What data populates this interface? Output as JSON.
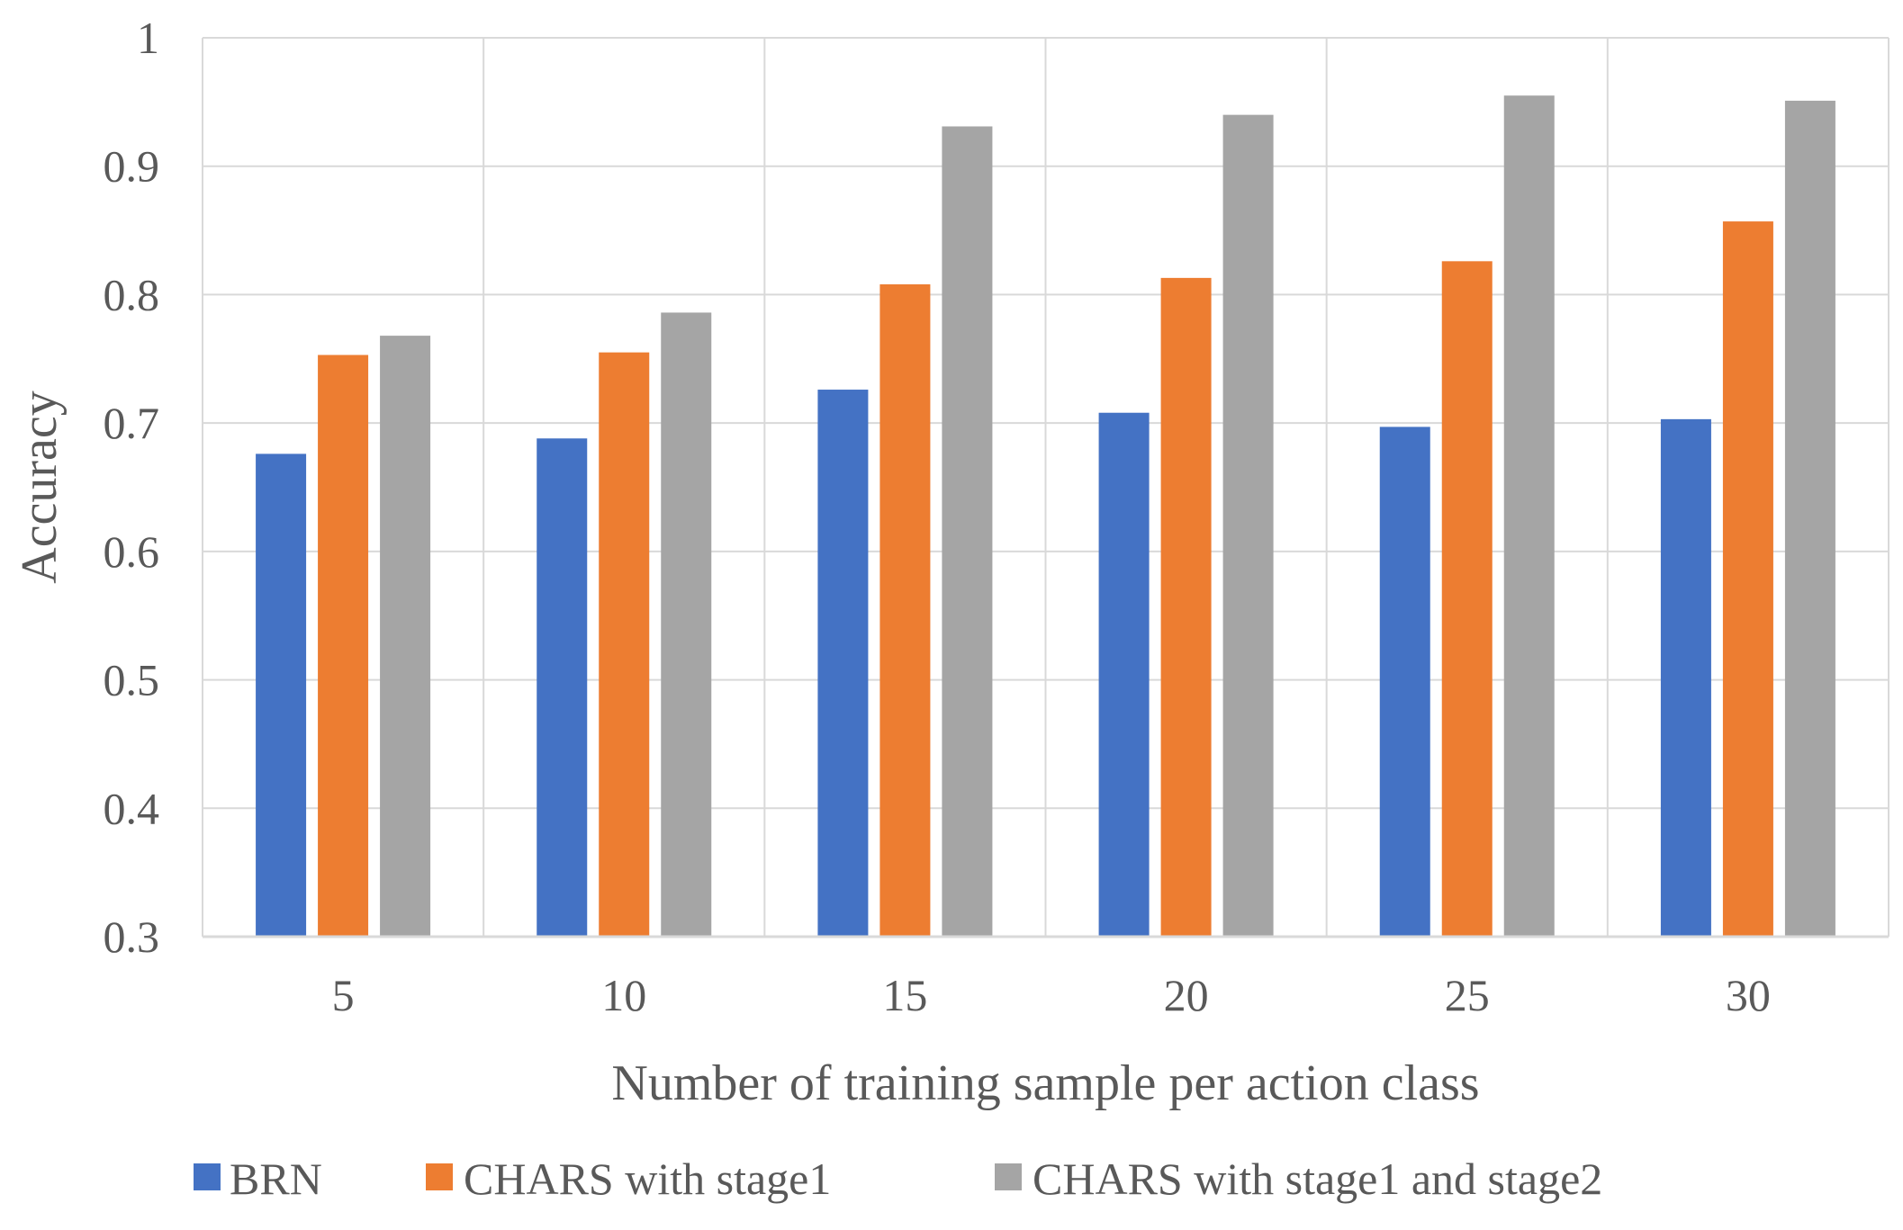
{
  "chart_data": {
    "type": "bar",
    "title": "",
    "xlabel": "Number of training sample per action class",
    "ylabel": "Accuracy",
    "categories": [
      "5",
      "10",
      "15",
      "20",
      "25",
      "30"
    ],
    "ylim": [
      0.3,
      1
    ],
    "yticks": [
      "0.3",
      "0.4",
      "0.5",
      "0.6",
      "0.7",
      "0.8",
      "0.9",
      "1"
    ],
    "grid": true,
    "legend_position": "bottom",
    "series": [
      {
        "name": "BRN",
        "color": "#4472c4",
        "values": [
          0.676,
          0.688,
          0.726,
          0.708,
          0.697,
          0.703
        ]
      },
      {
        "name": "CHARS with stage1",
        "color": "#ed7d31",
        "values": [
          0.753,
          0.755,
          0.808,
          0.813,
          0.826,
          0.857
        ]
      },
      {
        "name": "CHARS with stage1 and stage2",
        "color": "#a5a5a5",
        "values": [
          0.768,
          0.786,
          0.931,
          0.94,
          0.955,
          0.951
        ]
      }
    ]
  }
}
